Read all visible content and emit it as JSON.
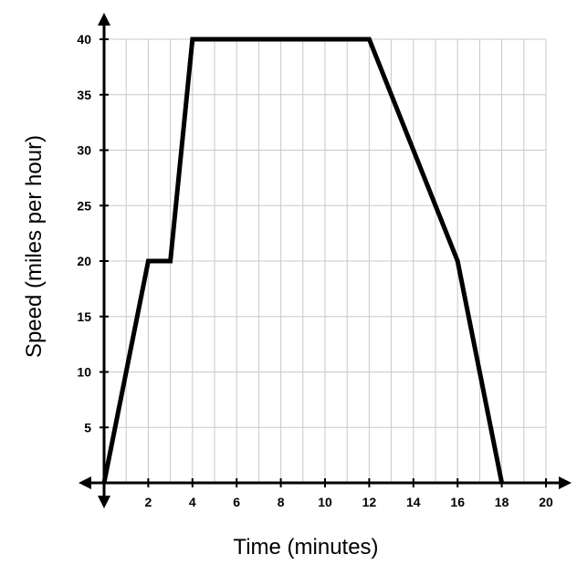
{
  "chart_data": {
    "type": "line",
    "title": "",
    "xlabel": "Time (minutes)",
    "ylabel": "Speed (miles per hour)",
    "xlim": [
      0,
      20
    ],
    "ylim": [
      0,
      40
    ],
    "x_ticks": [
      2,
      4,
      6,
      8,
      10,
      12,
      14,
      16,
      18,
      20
    ],
    "y_ticks": [
      5,
      10,
      15,
      20,
      25,
      30,
      35,
      40
    ],
    "grid": true,
    "series": [
      {
        "x": [
          0,
          2,
          3,
          4,
          12,
          16,
          18
        ],
        "y": [
          0,
          20,
          20,
          40,
          40,
          20,
          0
        ]
      }
    ]
  }
}
